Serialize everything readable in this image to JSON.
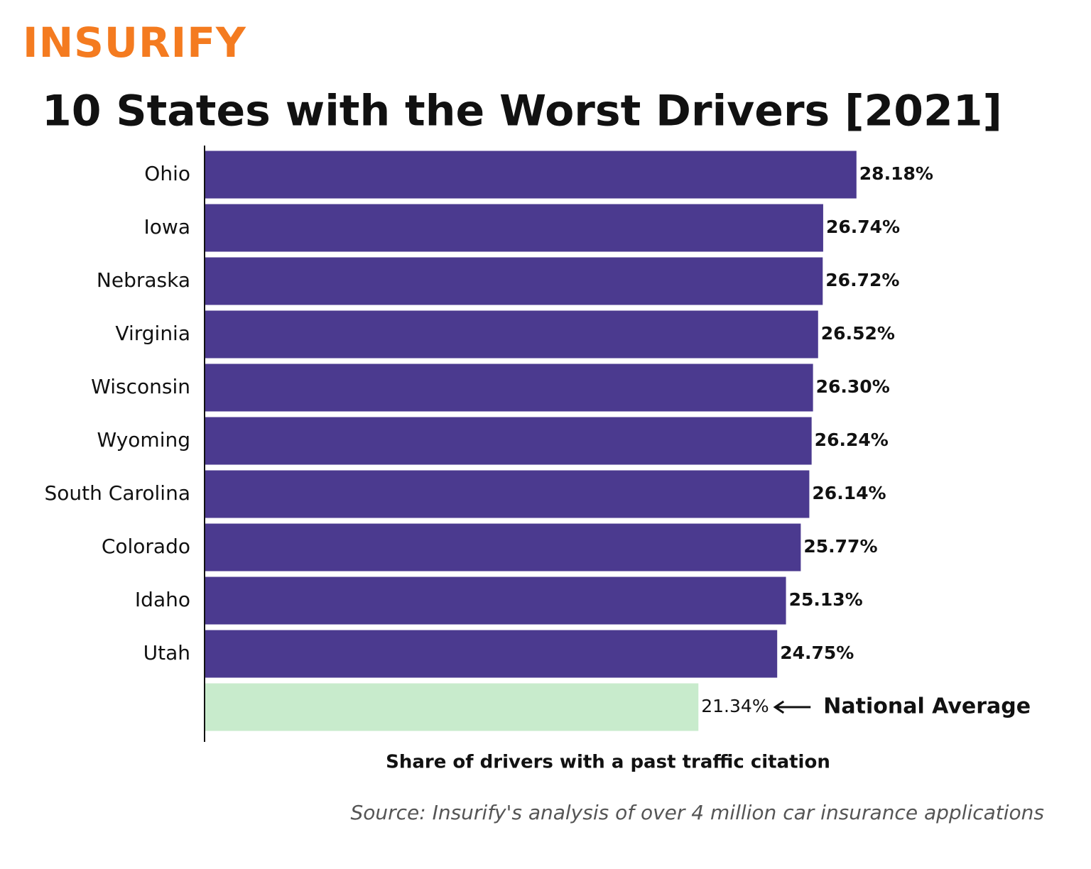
{
  "logo": "INSURIFY",
  "chart_data": {
    "type": "barh",
    "title": "10 States with the Worst Drivers [2021]",
    "categories": [
      "Ohio",
      "Iowa",
      "Nebraska",
      "Virginia",
      "Wisconsin",
      "Wyoming",
      "South Carolina",
      "Colorado",
      "Idaho",
      "Utah",
      null
    ],
    "values": [
      28.18,
      26.74,
      26.72,
      26.52,
      26.3,
      26.24,
      26.14,
      25.77,
      25.13,
      24.75,
      21.34
    ],
    "value_labels": [
      "28.18%",
      "26.74%",
      "26.72%",
      "26.52%",
      "26.30%",
      "26.24%",
      "26.14%",
      "25.77%",
      "25.13%",
      "24.75%",
      "21.34%"
    ],
    "colors": [
      "#4b3a8f",
      "#4b3a8f",
      "#4b3a8f",
      "#4b3a8f",
      "#4b3a8f",
      "#4b3a8f",
      "#4b3a8f",
      "#4b3a8f",
      "#4b3a8f",
      "#4b3a8f",
      "#c8ebcc"
    ],
    "annotation": "National Average",
    "xlabel": "Share of drivers with a past traffic citation",
    "xlim": [
      0,
      30
    ],
    "source": "Source: Insurify's analysis of over 4 million car insurance applications"
  }
}
